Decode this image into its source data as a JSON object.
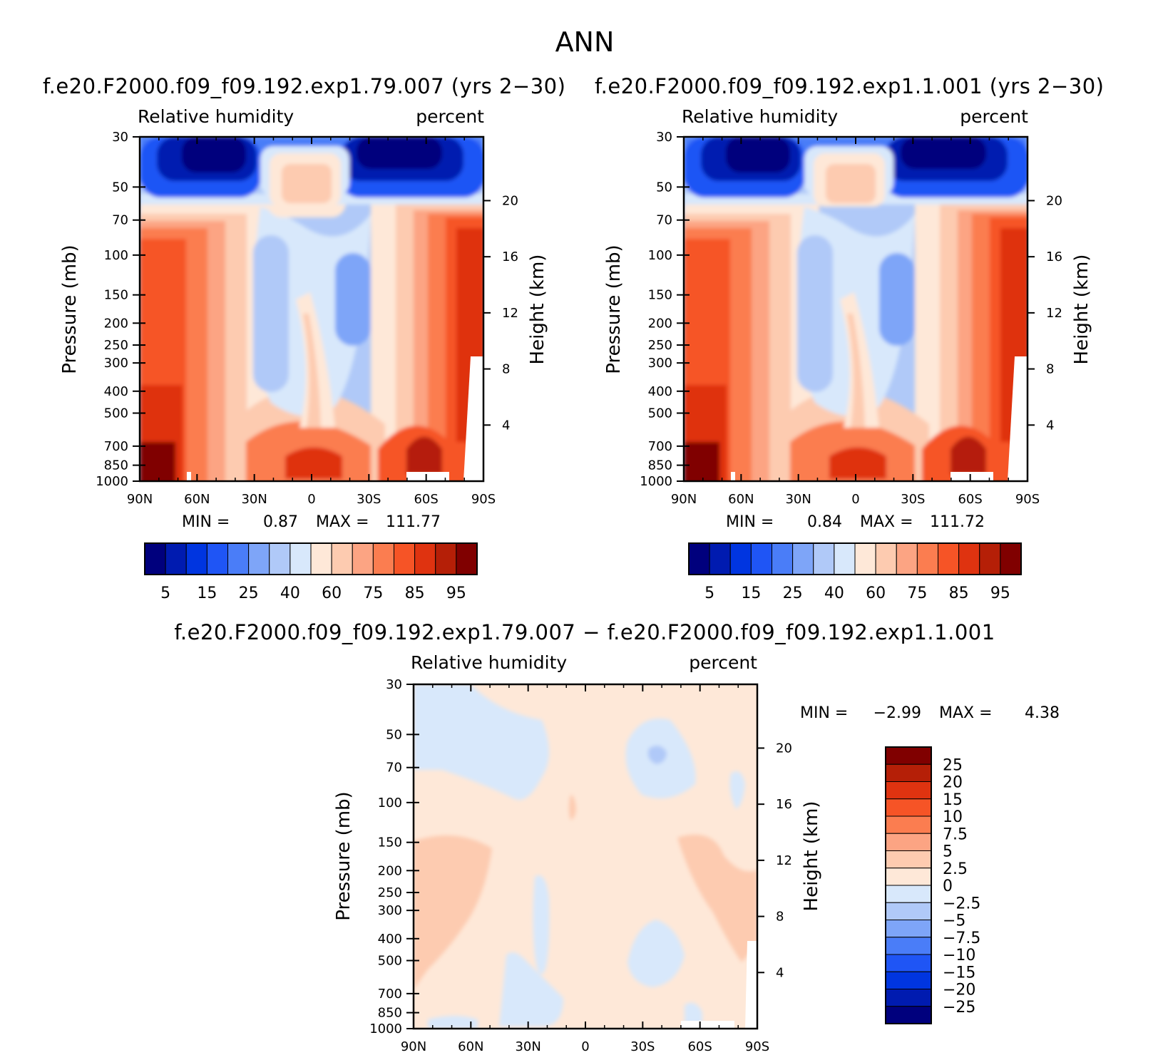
{
  "page_title": "ANN",
  "colors": {
    "rh_scale": [
      "#00007d",
      "#001bb0",
      "#0035e0",
      "#1f55f5",
      "#4a7df8",
      "#7ea5f8",
      "#b0c9f8",
      "#d8e8fb",
      "#fee8d8",
      "#fdcbb0",
      "#fca483",
      "#fb7d50",
      "#f65426",
      "#df3310",
      "#b51f07",
      "#800000"
    ],
    "diff_scale": [
      "#800000",
      "#b51f07",
      "#df3310",
      "#f65426",
      "#fb7d50",
      "#fca483",
      "#fdcbb0",
      "#fee8d8",
      "#d8e8fb",
      "#b0c9f8",
      "#7ea5f8",
      "#4a7df8",
      "#1f55f5",
      "#0035e0",
      "#001bb0",
      "#00007d"
    ]
  },
  "chart_data": [
    {
      "type": "heatmap",
      "title": "f.e20.F2000.f09_f09.192.exp1.79.007 (yrs 2−30)",
      "left_label": "Relative humidity",
      "right_label": "percent",
      "ylabel": "Pressure (mb)",
      "ylabel_right": "Height (km)",
      "x_ticks": [
        "90N",
        "60N",
        "30N",
        "0",
        "30S",
        "60S",
        "90S"
      ],
      "y_ticks": [
        "30",
        "50",
        "70",
        "100",
        "150",
        "200",
        "250",
        "300",
        "400",
        "500",
        "700",
        "850",
        "1000"
      ],
      "y_values": [
        30,
        50,
        70,
        100,
        150,
        200,
        250,
        300,
        400,
        500,
        700,
        850,
        1000
      ],
      "height_ticks": [
        "20",
        "16",
        "12",
        "8",
        "4"
      ],
      "height_values": [
        20,
        16,
        12,
        8,
        4
      ],
      "stats": {
        "min_label": "MIN =",
        "min": "0.87",
        "max_label": "MAX =",
        "max": "111.77"
      },
      "colorbar_labels": [
        "5",
        "15",
        "25",
        "40",
        "60",
        "75",
        "85",
        "95"
      ]
    },
    {
      "type": "heatmap",
      "title": "f.e20.F2000.f09_f09.192.exp1.1.001 (yrs 2−30)",
      "left_label": "Relative humidity",
      "right_label": "percent",
      "ylabel": "Pressure (mb)",
      "ylabel_right": "Height (km)",
      "x_ticks": [
        "90N",
        "60N",
        "30N",
        "0",
        "30S",
        "60S",
        "90S"
      ],
      "y_ticks": [
        "30",
        "50",
        "70",
        "100",
        "150",
        "200",
        "250",
        "300",
        "400",
        "500",
        "700",
        "850",
        "1000"
      ],
      "y_values": [
        30,
        50,
        70,
        100,
        150,
        200,
        250,
        300,
        400,
        500,
        700,
        850,
        1000
      ],
      "height_ticks": [
        "20",
        "16",
        "12",
        "8",
        "4"
      ],
      "height_values": [
        20,
        16,
        12,
        8,
        4
      ],
      "stats": {
        "min_label": "MIN =",
        "min": "0.84",
        "max_label": "MAX =",
        "max": "111.72"
      },
      "colorbar_labels": [
        "5",
        "15",
        "25",
        "40",
        "60",
        "75",
        "85",
        "95"
      ]
    },
    {
      "type": "heatmap",
      "title": "f.e20.F2000.f09_f09.192.exp1.79.007 − f.e20.F2000.f09_f09.192.exp1.1.001",
      "left_label": "Relative humidity",
      "right_label": "percent",
      "ylabel": "Pressure (mb)",
      "ylabel_right": "Height (km)",
      "x_ticks": [
        "90N",
        "60N",
        "30N",
        "0",
        "30S",
        "60S",
        "90S"
      ],
      "y_ticks": [
        "30",
        "50",
        "70",
        "100",
        "150",
        "200",
        "250",
        "300",
        "400",
        "500",
        "700",
        "850",
        "1000"
      ],
      "y_values": [
        30,
        50,
        70,
        100,
        150,
        200,
        250,
        300,
        400,
        500,
        700,
        850,
        1000
      ],
      "height_ticks": [
        "20",
        "16",
        "12",
        "8",
        "4"
      ],
      "height_values": [
        20,
        16,
        12,
        8,
        4
      ],
      "stats": {
        "min_label": "MIN =",
        "min": "−2.99",
        "max_label": "MAX =",
        "max": "4.38"
      },
      "colorbar_labels": [
        "25",
        "20",
        "15",
        "10",
        "7.5",
        "5",
        "2.5",
        "0",
        "−2.5",
        "−5",
        "−7.5",
        "−10",
        "−15",
        "−20",
        "−25"
      ]
    }
  ]
}
